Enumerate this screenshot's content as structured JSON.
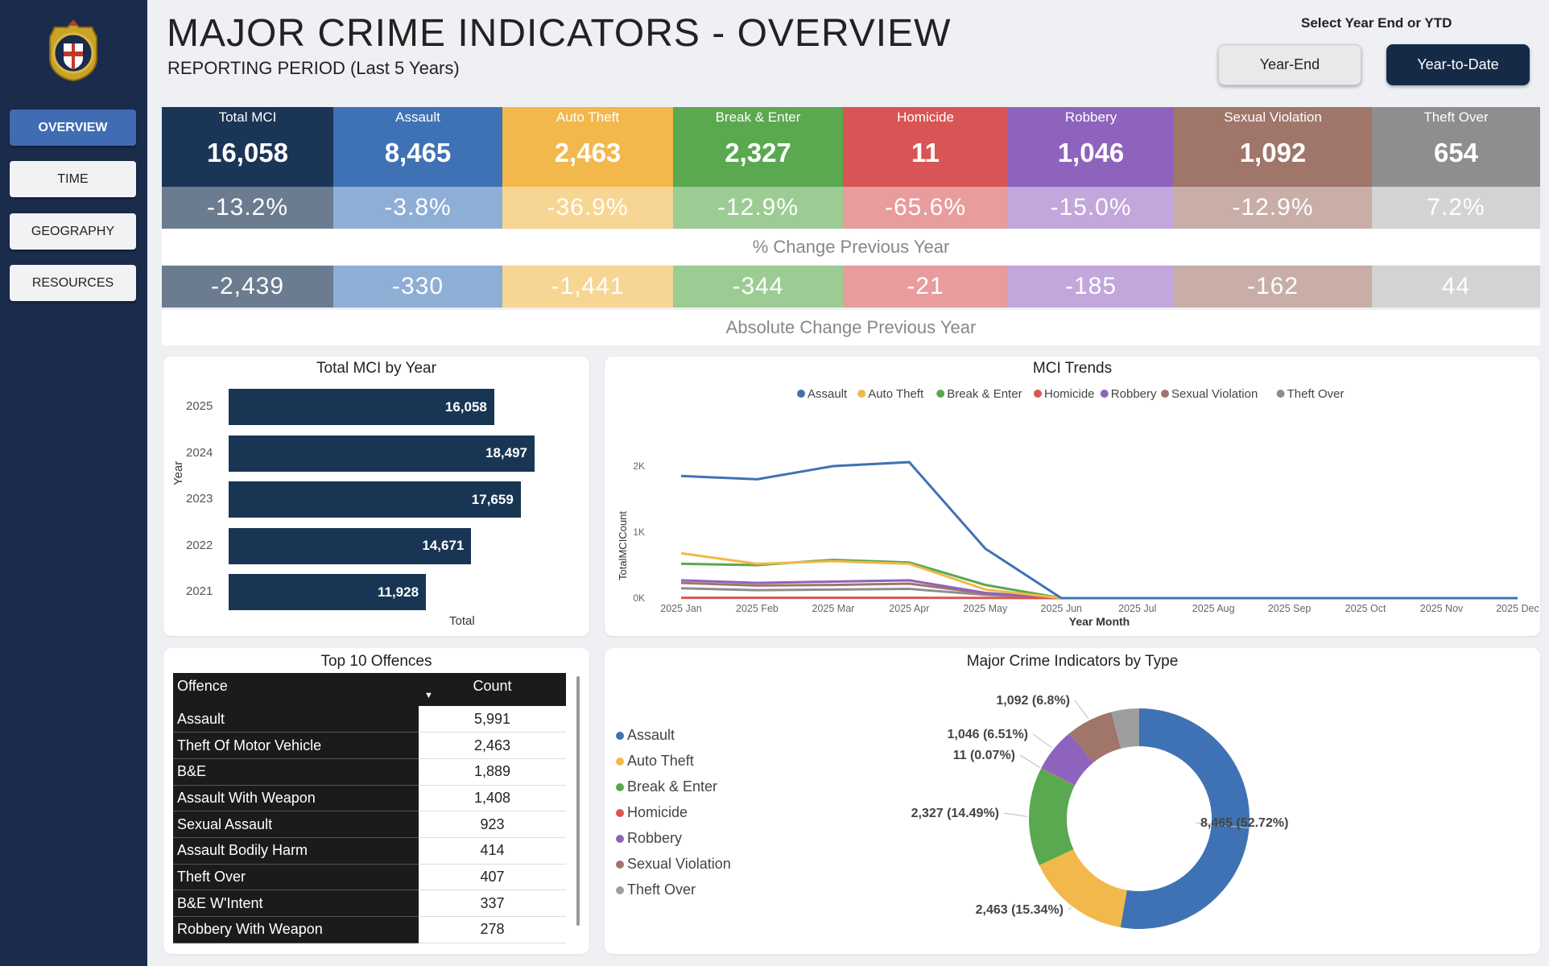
{
  "header": {
    "title": "MAJOR CRIME INDICATORS - OVERVIEW",
    "subtitle": "REPORTING PERIOD (Last 5 Years)"
  },
  "sidebar": {
    "items": [
      {
        "label": "OVERVIEW",
        "active": true
      },
      {
        "label": "TIME",
        "active": false
      },
      {
        "label": "GEOGRAPHY",
        "active": false
      },
      {
        "label": "RESOURCES",
        "active": false
      }
    ]
  },
  "toggle": {
    "label": "Select Year End or YTD",
    "year_end": "Year-End",
    "ytd": "Year-to-Date",
    "selected": "Year-to-Date"
  },
  "kpis": [
    {
      "name": "Total MCI",
      "value": "16,058",
      "pct": "-13.2%",
      "abs": "-2,439",
      "color": "#1b3556",
      "pct_color": "#6b7c91",
      "abs_color": "#6b7c91"
    },
    {
      "name": "Assault",
      "value": "8,465",
      "pct": "-3.8%",
      "abs": "-330",
      "color": "#3f72b4",
      "pct_color": "#8eaed6",
      "abs_color": "#8eaed6"
    },
    {
      "name": "Auto Theft",
      "value": "2,463",
      "pct": "-36.9%",
      "abs": "-1,441",
      "color": "#f2b84b",
      "pct_color": "#f7d593",
      "abs_color": "#f7d593"
    },
    {
      "name": "Break & Enter",
      "value": "2,327",
      "pct": "-12.9%",
      "abs": "-344",
      "color": "#5aa84f",
      "pct_color": "#9ccc93",
      "abs_color": "#9ccc93"
    },
    {
      "name": "Homicide",
      "value": "11",
      "pct": "-65.6%",
      "abs": "-21",
      "color": "#d95555",
      "pct_color": "#e89c9c",
      "abs_color": "#e89c9c"
    },
    {
      "name": "Robbery",
      "value": "1,046",
      "pct": "-15.0%",
      "abs": "-185",
      "color": "#8e63bd",
      "pct_color": "#c1a7dc",
      "abs_color": "#c1a7dc"
    },
    {
      "name": "Sexual Violation",
      "value": "1,092",
      "pct": "-12.9%",
      "abs": "-162",
      "color": "#a0756a",
      "pct_color": "#c8aea6",
      "abs_color": "#c8aea6"
    },
    {
      "name": "Theft Over",
      "value": "654",
      "pct": "7.2%",
      "abs": "44",
      "color": "#8e8e8e",
      "pct_color": "#d3d3d3",
      "abs_color": "#d3d3d3"
    }
  ],
  "captions": {
    "pct": "% Change Previous Year",
    "abs": "Absolute Change Previous Year"
  },
  "bar_panel": {
    "title": "Total MCI by Year",
    "ylabel": "Year",
    "xlabel": "Total"
  },
  "trend_panel": {
    "title": "MCI Trends",
    "ylabel": "TotalMCICount",
    "xlabel": "Year Month"
  },
  "table_panel": {
    "title": "Top 10 Offences",
    "col_offence": "Offence",
    "col_count": "Count",
    "rows": [
      {
        "offence": "Assault",
        "count": "5,991"
      },
      {
        "offence": "Theft Of Motor Vehicle",
        "count": "2,463"
      },
      {
        "offence": "B&E",
        "count": "1,889"
      },
      {
        "offence": "Assault With Weapon",
        "count": "1,408"
      },
      {
        "offence": "Sexual Assault",
        "count": "923"
      },
      {
        "offence": "Assault Bodily Harm",
        "count": "414"
      },
      {
        "offence": "Theft Over",
        "count": "407"
      },
      {
        "offence": "B&E W'Intent",
        "count": "337"
      },
      {
        "offence": "Robbery With Weapon",
        "count": "278"
      }
    ]
  },
  "donut_panel": {
    "title": "Major Crime Indicators by Type"
  },
  "chart_data": [
    {
      "type": "bar",
      "title": "Total MCI by Year",
      "xlabel": "Total",
      "ylabel": "Year",
      "categories": [
        "2025",
        "2024",
        "2023",
        "2022",
        "2021"
      ],
      "values": [
        16058,
        18497,
        17659,
        14671,
        11928
      ],
      "labels": [
        "16,058",
        "18,497",
        "17,659",
        "14,671",
        "11,928"
      ],
      "color": "#183654"
    },
    {
      "type": "line",
      "title": "MCI Trends",
      "xlabel": "Year Month",
      "ylabel": "TotalMCICount",
      "x": [
        "2025 Jan",
        "2025 Feb",
        "2025 Mar",
        "2025 Apr",
        "2025 May",
        "2025 Jun",
        "2025 Jul",
        "2025 Aug",
        "2025 Sep",
        "2025 Oct",
        "2025 Nov",
        "2025 Dec"
      ],
      "yticks": [
        {
          "v": 0,
          "label": "0K"
        },
        {
          "v": 1000,
          "label": "1K"
        },
        {
          "v": 2000,
          "label": "2K"
        }
      ],
      "ylim": [
        0,
        2200
      ],
      "legend": "top",
      "series": [
        {
          "name": "Assault",
          "color": "#3f72b4",
          "values": [
            1850,
            1800,
            2000,
            2060,
            750,
            0,
            0,
            0,
            0,
            0,
            0,
            0
          ]
        },
        {
          "name": "Auto Theft",
          "color": "#f2b84b",
          "values": [
            680,
            520,
            560,
            520,
            130,
            0,
            0,
            0,
            0,
            0,
            0,
            0
          ]
        },
        {
          "name": "Break & Enter",
          "color": "#5aa84f",
          "values": [
            520,
            500,
            580,
            540,
            200,
            0,
            0,
            0,
            0,
            0,
            0,
            0
          ]
        },
        {
          "name": "Homicide",
          "color": "#d95555",
          "values": [
            5,
            5,
            5,
            5,
            3,
            0,
            0,
            0,
            0,
            0,
            0,
            0
          ]
        },
        {
          "name": "Robbery",
          "color": "#8e63bd",
          "values": [
            270,
            230,
            250,
            270,
            80,
            0,
            0,
            0,
            0,
            0,
            0,
            0
          ]
        },
        {
          "name": "Sexual Violation",
          "color": "#a0756a",
          "values": [
            230,
            190,
            200,
            220,
            70,
            0,
            0,
            0,
            0,
            0,
            0,
            0
          ]
        },
        {
          "name": "Theft Over",
          "color": "#8e8e8e",
          "values": [
            150,
            120,
            130,
            140,
            50,
            0,
            0,
            0,
            0,
            0,
            0,
            0
          ]
        }
      ]
    },
    {
      "type": "pie",
      "title": "Major Crime Indicators by Type",
      "legend": "left",
      "categories": [
        "Assault",
        "Auto Theft",
        "Break & Enter",
        "Homicide",
        "Robbery",
        "Sexual Violation",
        "Theft Over"
      ],
      "values": [
        8465,
        2463,
        2327,
        11,
        1046,
        1092,
        654
      ],
      "colors": [
        "#3f72b4",
        "#f2b84b",
        "#5aa84f",
        "#d95555",
        "#8e63bd",
        "#a0756a",
        "#9e9e9e"
      ],
      "labels": [
        "8,465 (52.72%)",
        "2,463 (15.34%)",
        "2,327 (14.49%)",
        "11 (0.07%)",
        "1,046 (6.51%)",
        "1,092 (6.8%)",
        ""
      ]
    }
  ]
}
